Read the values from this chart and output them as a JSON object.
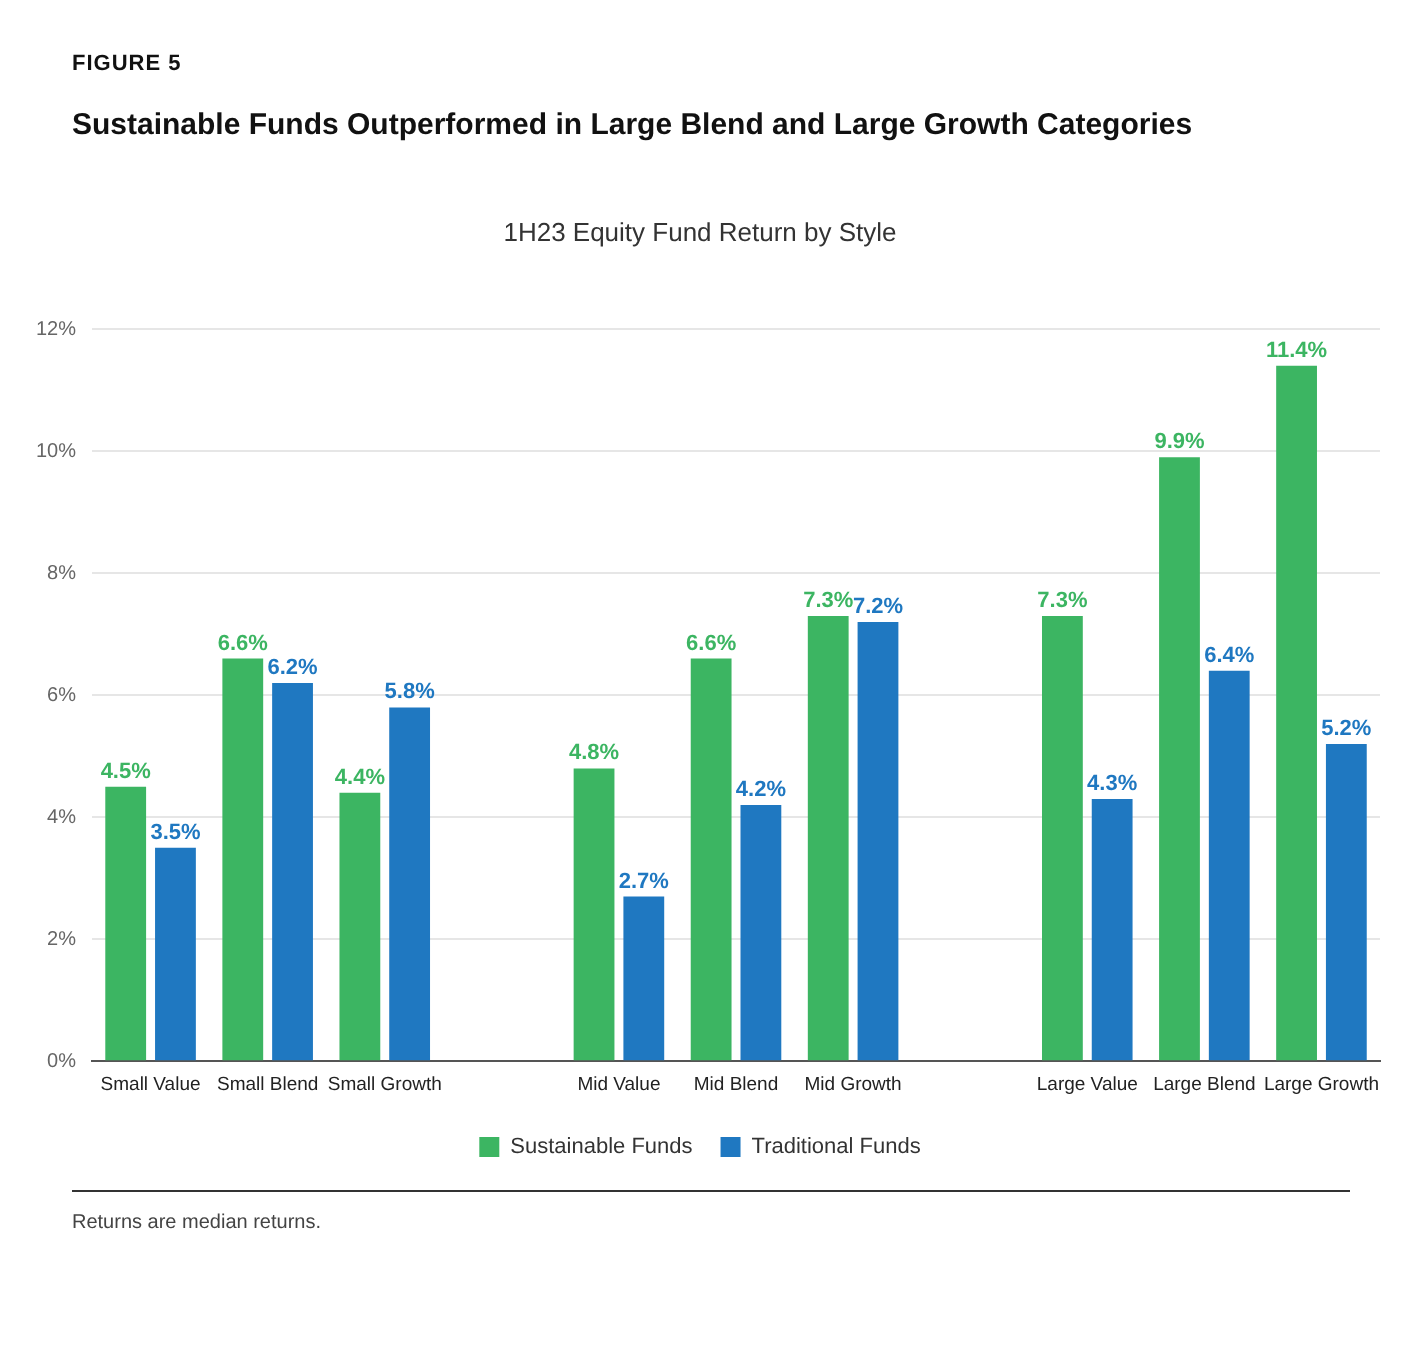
{
  "chart_data": {
    "type": "bar",
    "title": "Sustainable Funds Outperformed in Large Blend and Large Growth Categories",
    "subtitle": "1H23 Equity Fund Return by Style",
    "categories": [
      "Small Value",
      "Small Blend",
      "Small Growth",
      null,
      "Mid Value",
      "Mid Blend",
      "Mid Growth",
      null,
      "Large Value",
      "Large Blend",
      "Large Growth"
    ],
    "series": [
      {
        "name": "Sustainable Funds",
        "color": "#3cb562",
        "values": [
          4.5,
          6.6,
          4.4,
          null,
          4.8,
          6.6,
          7.3,
          null,
          7.3,
          9.9,
          11.4
        ],
        "value_labels": [
          "4.5%",
          "6.6%",
          "4.4%",
          null,
          "4.8%",
          "6.6%",
          "7.3%",
          null,
          "7.3%",
          "9.9%",
          "11.4%"
        ]
      },
      {
        "name": "Traditional Funds",
        "color": "#1f78c1",
        "values": [
          3.5,
          6.2,
          5.8,
          null,
          2.7,
          4.2,
          7.2,
          null,
          4.3,
          6.4,
          5.2
        ],
        "value_labels": [
          "3.5%",
          "6.2%",
          "5.8%",
          null,
          "2.7%",
          "4.2%",
          "7.2%",
          null,
          "4.3%",
          "6.4%",
          "5.2%"
        ]
      }
    ],
    "ylim": [
      0,
      12
    ],
    "yticks": [
      {
        "value": 0,
        "label": "0%"
      },
      {
        "value": 2,
        "label": "2%"
      },
      {
        "value": 4,
        "label": "4%"
      },
      {
        "value": 6,
        "label": "6%"
      },
      {
        "value": 8,
        "label": "8%"
      },
      {
        "value": 10,
        "label": "10%"
      },
      {
        "value": 12,
        "label": "12%"
      }
    ],
    "grid": "y",
    "legend": "bottom",
    "annotations": [
      "FIGURE 5",
      "Returns are median returns."
    ]
  }
}
